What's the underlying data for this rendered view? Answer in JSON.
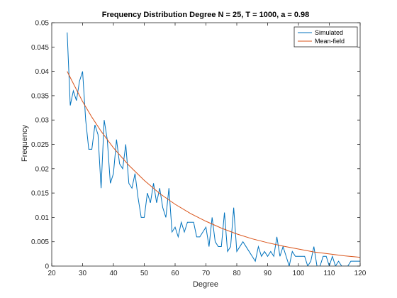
{
  "chart_data": {
    "type": "line",
    "title": "Frequency Distribution Degree N = 25, T = 1000, a = 0.98",
    "xlabel": "Degree",
    "ylabel": "Frequency",
    "xlim": [
      20,
      120
    ],
    "ylim": [
      0,
      0.05
    ],
    "xticks": [
      "20",
      "30",
      "40",
      "50",
      "60",
      "70",
      "80",
      "90",
      "100",
      "110",
      "120"
    ],
    "yticks": [
      "0",
      "0.005",
      "0.01",
      "0.015",
      "0.02",
      "0.025",
      "0.03",
      "0.035",
      "0.04",
      "0.045",
      "0.05"
    ],
    "grid": false,
    "legend_position": "top-right",
    "series": [
      {
        "name": "Simulated",
        "color": "#0072BD",
        "x": [
          25,
          26,
          27,
          28,
          29,
          30,
          31,
          32,
          33,
          34,
          35,
          36,
          37,
          38,
          39,
          40,
          41,
          42,
          43,
          44,
          45,
          46,
          47,
          48,
          49,
          50,
          51,
          52,
          53,
          54,
          55,
          56,
          57,
          58,
          59,
          60,
          61,
          62,
          63,
          64,
          65,
          66,
          67,
          68,
          69,
          70,
          71,
          72,
          73,
          74,
          75,
          76,
          77,
          78,
          79,
          80,
          81,
          82,
          83,
          84,
          85,
          86,
          87,
          88,
          89,
          90,
          91,
          92,
          93,
          94,
          95,
          96,
          97,
          98,
          99,
          100,
          101,
          102,
          103,
          104,
          105,
          106,
          107,
          108,
          109,
          110,
          111,
          112,
          113,
          114,
          115,
          116,
          117,
          118,
          119,
          120
        ],
        "y": [
          0.048,
          0.033,
          0.036,
          0.034,
          0.038,
          0.04,
          0.03,
          0.024,
          0.024,
          0.029,
          0.027,
          0.016,
          0.03,
          0.026,
          0.017,
          0.019,
          0.026,
          0.021,
          0.02,
          0.025,
          0.017,
          0.016,
          0.019,
          0.014,
          0.01,
          0.01,
          0.015,
          0.013,
          0.017,
          0.013,
          0.016,
          0.012,
          0.01,
          0.016,
          0.007,
          0.008,
          0.006,
          0.009,
          0.007,
          0.009,
          0.009,
          0.009,
          0.006,
          0.006,
          0.007,
          0.008,
          0.004,
          0.01,
          0.005,
          0.004,
          0.004,
          0.011,
          0.003,
          0.004,
          0.012,
          0.003,
          0.004,
          0.005,
          0.004,
          0.003,
          0.002,
          0.001,
          0.004,
          0.002,
          0.003,
          0.002,
          0.003,
          0.002,
          0.006,
          0.002,
          0.004,
          0.002,
          0.0,
          0.003,
          0.002,
          0.002,
          0.002,
          0.002,
          0.0,
          0.001,
          0.004,
          0.0,
          0.0,
          0.002,
          0.002,
          0.0,
          0.002,
          0.0,
          0.001,
          0.0,
          0.0,
          0.0,
          0.001,
          0.001,
          0.001,
          0.001
        ]
      },
      {
        "name": "Mean-field",
        "color": "#D95319",
        "x": [
          25,
          27,
          30,
          33,
          36,
          40,
          45,
          50,
          55,
          60,
          65,
          70,
          75,
          80,
          85,
          90,
          95,
          100,
          105,
          110,
          115,
          120
        ],
        "y": [
          0.04,
          0.0375,
          0.0338,
          0.0306,
          0.0277,
          0.0243,
          0.0207,
          0.0176,
          0.0149,
          0.0127,
          0.0108,
          0.0092,
          0.0078,
          0.0066,
          0.0056,
          0.0048,
          0.0041,
          0.0035,
          0.0029,
          0.0025,
          0.0021,
          0.0018
        ]
      }
    ]
  }
}
